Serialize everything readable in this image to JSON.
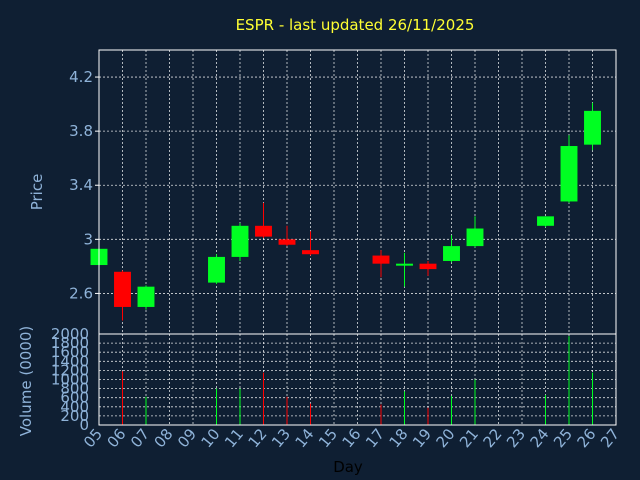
{
  "chart_data": {
    "type": "candlestick",
    "title": "ESPR - last updated 26/11/2025",
    "price_axis": {
      "label": "Price",
      "ylim": [
        2.3,
        4.4
      ],
      "ticks": [
        "2.6",
        "3",
        "3.4",
        "3.8",
        "4.2"
      ],
      "tick_values": [
        2.6,
        3.0,
        3.4,
        3.8,
        4.2
      ]
    },
    "volume_axis": {
      "label": "Volume (0000)",
      "ylim": [
        0,
        2000
      ],
      "ticks": [
        "0",
        "200",
        "400",
        "600",
        "800",
        "1000",
        "1200",
        "1400",
        "1600",
        "1800",
        "2000"
      ],
      "tick_values": [
        0,
        200,
        400,
        600,
        800,
        1000,
        1200,
        1400,
        1600,
        1800,
        2000
      ]
    },
    "x_axis": {
      "label": "Day",
      "ticks": [
        "05",
        "06",
        "07",
        "08",
        "09",
        "10",
        "11",
        "12",
        "13",
        "14",
        "15",
        "16",
        "17",
        "18",
        "19",
        "20",
        "21",
        "22",
        "23",
        "24",
        "25",
        "26",
        "27"
      ],
      "xlim": [
        5,
        27
      ]
    },
    "grid": true,
    "colors": {
      "up": "#00ff22",
      "down": "#ff0000",
      "background": "#0f1f33",
      "title": "#ffff33",
      "axis_text": "#8fb3d9"
    },
    "candles": [
      {
        "day": 5,
        "open": 2.81,
        "close": 2.93,
        "high": 2.93,
        "low": 2.81
      },
      {
        "day": 6,
        "open": 2.76,
        "close": 2.5,
        "high": 2.77,
        "low": 2.4
      },
      {
        "day": 7,
        "open": 2.5,
        "close": 2.65,
        "high": 2.66,
        "low": 2.48
      },
      {
        "day": 10,
        "open": 2.68,
        "close": 2.87,
        "high": 2.89,
        "low": 2.67
      },
      {
        "day": 11,
        "open": 2.87,
        "close": 3.1,
        "high": 3.12,
        "low": 2.84
      },
      {
        "day": 12,
        "open": 3.1,
        "close": 3.02,
        "high": 3.27,
        "low": 3.01
      },
      {
        "day": 13,
        "open": 3.0,
        "close": 2.96,
        "high": 3.1,
        "low": 2.95
      },
      {
        "day": 14,
        "open": 2.92,
        "close": 2.89,
        "high": 3.06,
        "low": 2.88
      },
      {
        "day": 17,
        "open": 2.88,
        "close": 2.82,
        "high": 2.92,
        "low": 2.72
      },
      {
        "day": 18,
        "open": 2.81,
        "close": 2.82,
        "high": 2.9,
        "low": 2.65
      },
      {
        "day": 19,
        "open": 2.82,
        "close": 2.78,
        "high": 2.84,
        "low": 2.73
      },
      {
        "day": 20,
        "open": 2.84,
        "close": 2.95,
        "high": 3.03,
        "low": 2.83
      },
      {
        "day": 21,
        "open": 2.95,
        "close": 3.08,
        "high": 3.17,
        "low": 2.94
      },
      {
        "day": 24,
        "open": 3.1,
        "close": 3.17,
        "high": 3.17,
        "low": 3.09
      },
      {
        "day": 25,
        "open": 3.28,
        "close": 3.69,
        "high": 3.77,
        "low": 3.27
      },
      {
        "day": 26,
        "open": 3.7,
        "close": 3.95,
        "high": 4.01,
        "low": 3.66
      }
    ],
    "volumes": [
      {
        "day": 6,
        "value": 1180,
        "dir": "down"
      },
      {
        "day": 7,
        "value": 620,
        "dir": "up"
      },
      {
        "day": 10,
        "value": 800,
        "dir": "up"
      },
      {
        "day": 11,
        "value": 800,
        "dir": "up"
      },
      {
        "day": 12,
        "value": 1150,
        "dir": "down"
      },
      {
        "day": 13,
        "value": 620,
        "dir": "down"
      },
      {
        "day": 14,
        "value": 470,
        "dir": "down"
      },
      {
        "day": 17,
        "value": 450,
        "dir": "down"
      },
      {
        "day": 18,
        "value": 740,
        "dir": "up"
      },
      {
        "day": 19,
        "value": 380,
        "dir": "down"
      },
      {
        "day": 20,
        "value": 640,
        "dir": "up"
      },
      {
        "day": 21,
        "value": 1000,
        "dir": "up"
      },
      {
        "day": 24,
        "value": 660,
        "dir": "up"
      },
      {
        "day": 25,
        "value": 1950,
        "dir": "up"
      },
      {
        "day": 26,
        "value": 1150,
        "dir": "up"
      }
    ]
  }
}
